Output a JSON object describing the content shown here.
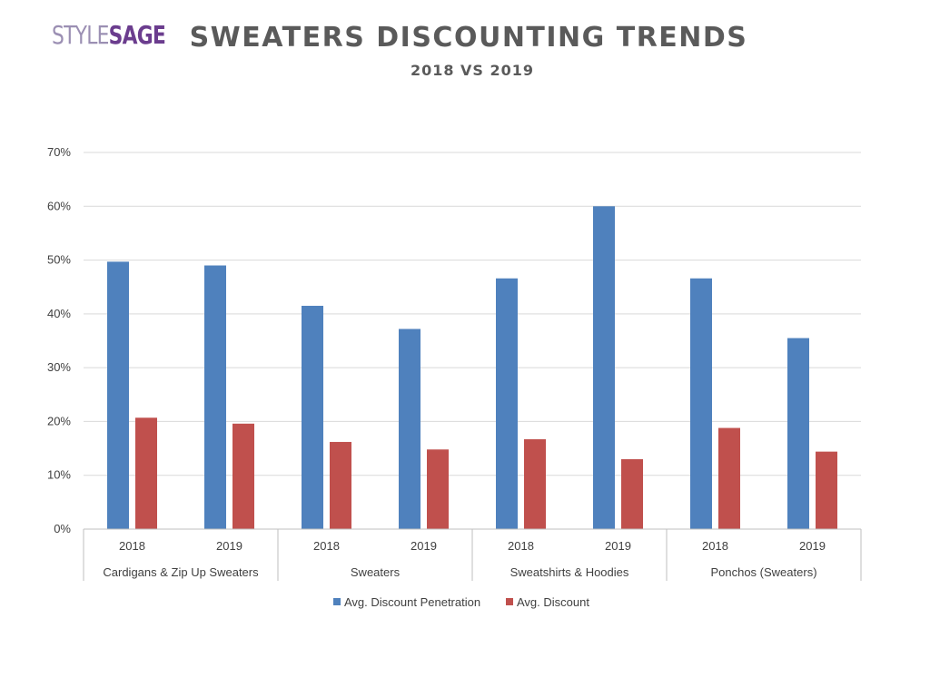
{
  "logo": {
    "part1": "STYLE",
    "part2": "SAGE"
  },
  "header": {
    "title": "SWEATERS DISCOUNTING TRENDS",
    "subtitle": "2018 VS 2019"
  },
  "chart_data": {
    "type": "bar",
    "title": "SWEATERS DISCOUNTING TRENDS",
    "subtitle": "2018 VS 2019",
    "groups": [
      "Cardigans & Zip Up Sweaters",
      "Sweaters",
      "Sweatshirts & Hoodies",
      "Ponchos (Sweaters)"
    ],
    "categories": [
      "2018",
      "2019",
      "2018",
      "2019",
      "2018",
      "2019",
      "2018",
      "2019"
    ],
    "series": [
      {
        "name": "Avg. Discount Penetration",
        "color": "#4f81bd",
        "values": [
          0.497,
          0.49,
          0.415,
          0.372,
          0.466,
          0.6,
          0.466,
          0.355
        ]
      },
      {
        "name": "Avg. Discount",
        "color": "#c0504d",
        "values": [
          0.207,
          0.196,
          0.162,
          0.148,
          0.167,
          0.13,
          0.188,
          0.144
        ]
      }
    ],
    "ylim": [
      0,
      0.7
    ],
    "yticks": [
      "0%",
      "10%",
      "20%",
      "30%",
      "40%",
      "50%",
      "60%",
      "70%"
    ],
    "grid": true,
    "legend": "bottom"
  }
}
